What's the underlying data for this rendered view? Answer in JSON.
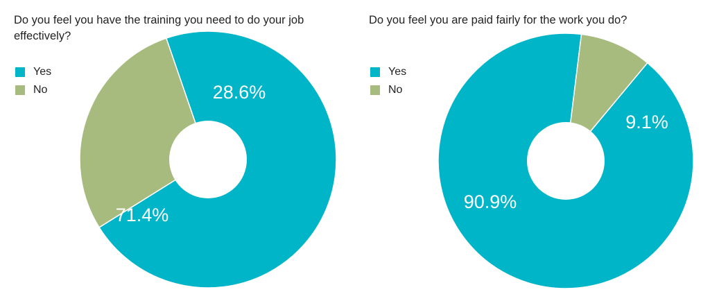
{
  "chart_data": [
    {
      "type": "pie",
      "title": "Do you feel you have the training you need to do your job effectively?",
      "categories": [
        "Yes",
        "No"
      ],
      "values": [
        71.4,
        28.6
      ],
      "labels": [
        "71.4%",
        "28.6%"
      ],
      "colors": [
        "#00b5c8",
        "#a8bb7f"
      ],
      "legend_position": "top-left",
      "donut": true
    },
    {
      "type": "pie",
      "title": "Do you feel you are paid fairly for the work you do?",
      "categories": [
        "Yes",
        "No"
      ],
      "values": [
        90.9,
        9.1
      ],
      "labels": [
        "90.9%",
        "9.1%"
      ],
      "colors": [
        "#00b5c8",
        "#a8bb7f"
      ],
      "legend_position": "top-left",
      "donut": true
    }
  ]
}
